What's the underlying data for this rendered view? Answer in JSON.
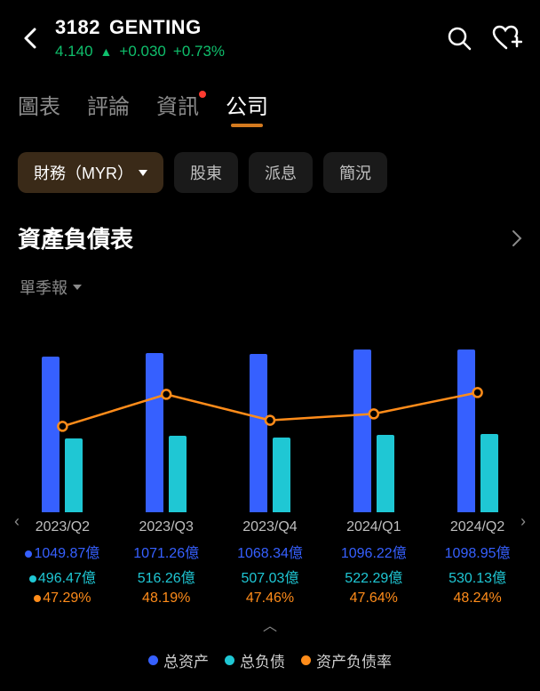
{
  "header": {
    "ticker_code": "3182",
    "ticker_name": "GENTING",
    "price": "4.140",
    "change_abs": "+0.030",
    "change_pct": "+0.73%"
  },
  "tabs": {
    "items": [
      "圖表",
      "評論",
      "資訊",
      "公司"
    ],
    "active_index": 3,
    "notif_index": 2
  },
  "subtabs": {
    "items": [
      "財務（MYR）",
      "股東",
      "派息",
      "簡況"
    ],
    "active_index": 0
  },
  "section": {
    "title": "資產負債表",
    "period_label": "單季報"
  },
  "chart": {
    "type": "bar_with_line",
    "bar_max": 1200,
    "line_min": 45,
    "line_max": 50,
    "periods": [
      "2023/Q2",
      "2023/Q3",
      "2023/Q4",
      "2024/Q1",
      "2024/Q2"
    ],
    "series_assets": {
      "label": "总资产",
      "color": "#3660ff",
      "values": [
        1049.87,
        1071.26,
        1068.34,
        1096.22,
        1098.95
      ],
      "display": [
        "1049.87億",
        "1071.26億",
        "1068.34億",
        "1096.22億",
        "1098.95億"
      ]
    },
    "series_liab": {
      "label": "总负债",
      "color": "#1fc7d4",
      "values": [
        496.47,
        516.26,
        507.03,
        522.29,
        530.13
      ],
      "display": [
        "496.47億",
        "516.26億",
        "507.03億",
        "522.29億",
        "530.13億"
      ]
    },
    "series_ratio": {
      "label": "资产负债率",
      "color": "#ff8c1a",
      "values": [
        47.29,
        48.19,
        47.46,
        47.64,
        48.24
      ],
      "display": [
        "47.29%",
        "48.19%",
        "47.46%",
        "47.64%",
        "48.24%"
      ]
    }
  }
}
